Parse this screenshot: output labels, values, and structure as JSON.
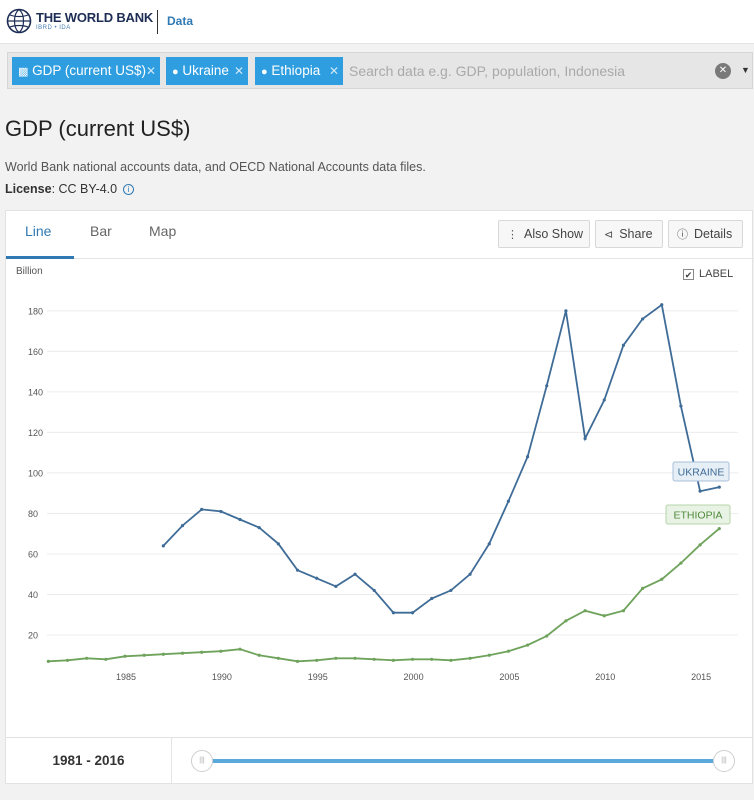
{
  "header": {
    "logo_text": "THE WORLD BANK",
    "logo_sub": "IBRD • IDA",
    "data_link": "Data"
  },
  "search": {
    "chips": [
      {
        "label": "GDP (current US$)",
        "icon": "bar-chart-icon"
      },
      {
        "label": "Ukraine",
        "icon": "map-pin-icon"
      },
      {
        "label": "Ethiopia",
        "icon": "map-pin-icon"
      }
    ],
    "placeholder": "Search data e.g. GDP, population, Indonesia"
  },
  "indicator": {
    "title": "GDP (current US$)",
    "source": "World Bank national accounts data, and OECD National Accounts data files.",
    "license_label": "License",
    "license_value": ": CC BY-4.0"
  },
  "tabs": [
    "Line",
    "Bar",
    "Map"
  ],
  "active_tab": "Line",
  "toolbar": {
    "also_show": "Also Show",
    "share": "Share",
    "details": "Details"
  },
  "label_toggle": {
    "text": "LABEL",
    "checked": true
  },
  "range": {
    "label": "1981 - 2016",
    "start": 1981,
    "end": 2016
  },
  "colors": {
    "accent": "#2f7ab5",
    "chip": "#2f9ee0",
    "ukraine": "#3f6c97",
    "ethiopia": "#6fa35c"
  },
  "chart_data": {
    "type": "line",
    "ylabel": "Billion",
    "ylim": [
      0,
      190
    ],
    "yticks": [
      20,
      40,
      60,
      80,
      100,
      120,
      140,
      160,
      180
    ],
    "xlim": [
      1981,
      2016
    ],
    "xticks": [
      1985,
      1990,
      1995,
      2000,
      2005,
      2010,
      2015
    ],
    "grid": true,
    "series": [
      {
        "name": "UKRAINE",
        "color": "#3f6c97",
        "x": [
          1987,
          1988,
          1989,
          1990,
          1991,
          1992,
          1993,
          1994,
          1995,
          1996,
          1997,
          1998,
          1999,
          2000,
          2001,
          2002,
          2003,
          2004,
          2005,
          2006,
          2007,
          2008,
          2009,
          2010,
          2011,
          2012,
          2013,
          2014,
          2015,
          2016
        ],
        "values": [
          64,
          74,
          82,
          81,
          77,
          73,
          65,
          52,
          48,
          44,
          50,
          42,
          31,
          31,
          38,
          42,
          50,
          65,
          86,
          108,
          143,
          180,
          117,
          136,
          163,
          176,
          183,
          133,
          91,
          93
        ]
      },
      {
        "name": "ETHIOPIA",
        "color": "#6fa35c",
        "x": [
          1981,
          1982,
          1983,
          1984,
          1985,
          1986,
          1987,
          1988,
          1989,
          1990,
          1991,
          1992,
          1993,
          1994,
          1995,
          1996,
          1997,
          1998,
          1999,
          2000,
          2001,
          2002,
          2003,
          2004,
          2005,
          2006,
          2007,
          2008,
          2009,
          2010,
          2011,
          2012,
          2013,
          2014,
          2015,
          2016
        ],
        "values": [
          7,
          7.5,
          8.5,
          8,
          9.5,
          10,
          10.5,
          11,
          11.5,
          12,
          13,
          10,
          8.5,
          7,
          7.5,
          8.5,
          8.5,
          8,
          7.5,
          8,
          8,
          7.5,
          8.5,
          10,
          12,
          15,
          19.5,
          27,
          32,
          29.5,
          32,
          43,
          47.5,
          55.5,
          64.5,
          72.5
        ]
      }
    ]
  }
}
